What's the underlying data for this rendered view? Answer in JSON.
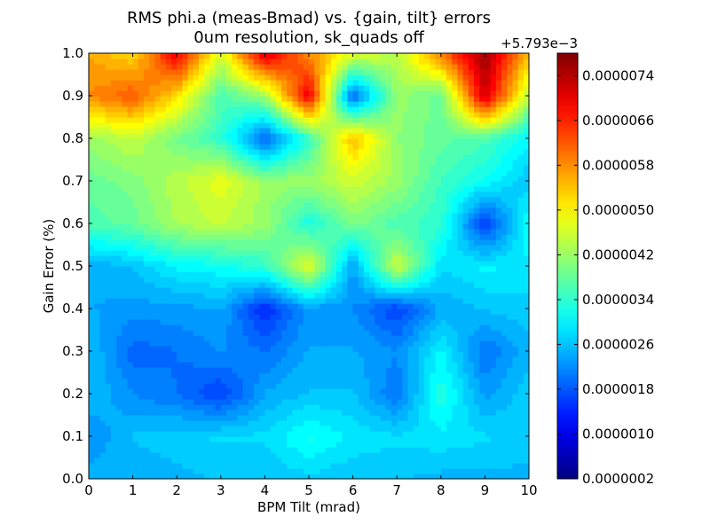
{
  "chart_data": {
    "type": "heatmap",
    "style": "filled-contour",
    "colormap": "jet",
    "title": [
      "RMS phi.a (meas-Bmad) vs. {gain, tilt} errors",
      "0um resolution, sk_quads off"
    ],
    "xlabel": "BPM Tilt (mrad)",
    "ylabel": "Gain Error (%)",
    "xlim": [
      0,
      10
    ],
    "ylim": [
      0,
      1.0
    ],
    "x": [
      0,
      1,
      2,
      3,
      4,
      5,
      6,
      7,
      8,
      9,
      10
    ],
    "y": [
      0.0,
      0.1,
      0.2,
      0.3,
      0.4,
      0.5,
      0.6,
      0.7,
      0.8,
      0.9,
      1.0
    ],
    "x_tick_labels": [
      "0",
      "1",
      "2",
      "3",
      "4",
      "5",
      "6",
      "7",
      "8",
      "9",
      "10"
    ],
    "y_tick_labels": [
      "0.0",
      "0.1",
      "0.2",
      "0.3",
      "0.4",
      "0.5",
      "0.6",
      "0.7",
      "0.8",
      "0.9",
      "1.0"
    ],
    "z_units": "value minus offset 5.793e-3",
    "z": [
      [
        2.5,
        2.4,
        2.5,
        2.6,
        2.6,
        2.7,
        2.6,
        2.6,
        2.5,
        2.5,
        2.5
      ],
      [
        2.2,
        2.6,
        2.7,
        2.8,
        2.8,
        3.2,
        2.9,
        2.8,
        2.9,
        2.8,
        2.7
      ],
      [
        2.6,
        2.2,
        2.0,
        1.6,
        2.4,
        2.6,
        2.6,
        2.0,
        3.3,
        2.3,
        2.7
      ],
      [
        2.6,
        1.9,
        2.0,
        2.2,
        2.0,
        2.4,
        2.4,
        2.2,
        3.0,
        2.0,
        2.5
      ],
      [
        2.4,
        2.3,
        2.3,
        2.4,
        1.4,
        2.3,
        2.2,
        1.6,
        2.4,
        2.6,
        2.7
      ],
      [
        2.4,
        2.6,
        3.0,
        3.1,
        3.4,
        4.8,
        2.3,
        4.6,
        2.8,
        3.0,
        2.9
      ],
      [
        3.6,
        3.8,
        4.3,
        4.5,
        4.2,
        3.2,
        4.0,
        3.6,
        3.4,
        1.5,
        3.2
      ],
      [
        3.8,
        4.0,
        4.4,
        4.8,
        4.2,
        4.2,
        4.6,
        4.2,
        3.5,
        3.1,
        2.6
      ],
      [
        4.2,
        4.5,
        3.9,
        3.4,
        1.8,
        3.4,
        5.5,
        4.1,
        3.8,
        3.6,
        3.0
      ],
      [
        5.8,
        6.2,
        5.2,
        3.6,
        4.2,
        7.0,
        1.8,
        4.2,
        3.8,
        7.2,
        4.4
      ],
      [
        5.6,
        5.2,
        7.0,
        4.6,
        7.2,
        5.8,
        4.8,
        4.4,
        6.0,
        7.6,
        5.4
      ]
    ],
    "colorbar": {
      "min": 0.2,
      "max": 7.8,
      "offset_label": "+5.793e−3",
      "tick_values": [
        0.2,
        1.0,
        1.8,
        2.6,
        3.4,
        4.2,
        5.0,
        5.8,
        6.6,
        7.4
      ],
      "tick_labels": [
        "0.0000002",
        "0.0000010",
        "0.0000018",
        "0.0000026",
        "0.0000034",
        "0.0000042",
        "0.0000050",
        "0.0000058",
        "0.0000066",
        "0.0000074"
      ]
    },
    "grid": false
  }
}
